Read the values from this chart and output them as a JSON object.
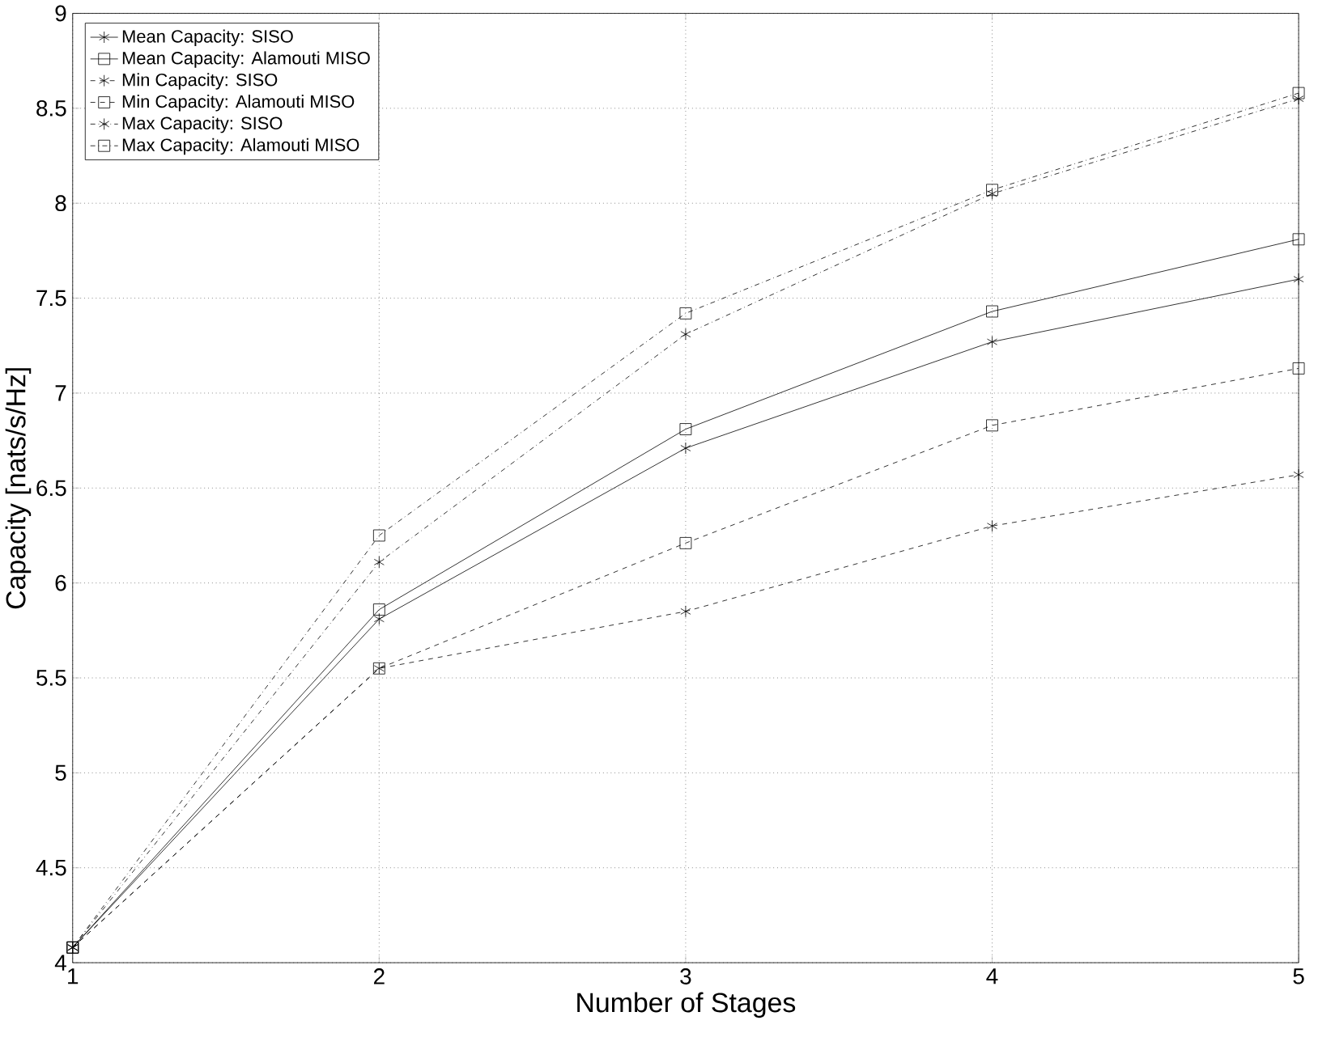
{
  "chart_data": {
    "type": "line",
    "xlabel": "Number of Stages",
    "ylabel": "Capacity [nats/s/Hz]",
    "x": [
      1,
      2,
      3,
      4,
      5
    ],
    "series": [
      {
        "name": "Mean Capacity: SISO",
        "color": "#000000",
        "marker": "cross",
        "line_style": "solid",
        "values": [
          4.08,
          5.81,
          6.71,
          7.27,
          7.6
        ]
      },
      {
        "name": "Mean Capacity: Alamouti MISO",
        "color": "#000000",
        "marker": "square",
        "line_style": "solid",
        "values": [
          4.08,
          5.86,
          6.81,
          7.43,
          7.81
        ]
      },
      {
        "name": "Min Capacity: SISO",
        "color": "#000000",
        "marker": "cross",
        "line_style": "dashed",
        "values": [
          4.08,
          5.55,
          5.85,
          6.3,
          6.57
        ]
      },
      {
        "name": "Min Capacity: Alamouti MISO",
        "color": "#000000",
        "marker": "square",
        "line_style": "dashed",
        "values": [
          4.08,
          5.55,
          6.21,
          6.83,
          7.13
        ]
      },
      {
        "name": "Max Capacity: SISO",
        "color": "#000000",
        "marker": "cross",
        "line_style": "dashdotted",
        "values": [
          4.08,
          6.11,
          7.31,
          8.05,
          8.55
        ]
      },
      {
        "name": "Max Capacity: Alamouti MISO",
        "color": "#000000",
        "marker": "square",
        "line_style": "dashdotted",
        "values": [
          4.08,
          6.25,
          7.42,
          8.07,
          8.58
        ]
      }
    ],
    "xlim": [
      1,
      5
    ],
    "ylim": [
      4,
      9
    ],
    "xticks": [
      1,
      2,
      3,
      4,
      5
    ],
    "yticks": [
      4,
      4.5,
      5,
      5.5,
      6,
      6.5,
      7,
      7.5,
      8,
      8.5,
      9
    ],
    "grid": true,
    "legend": "top left"
  }
}
